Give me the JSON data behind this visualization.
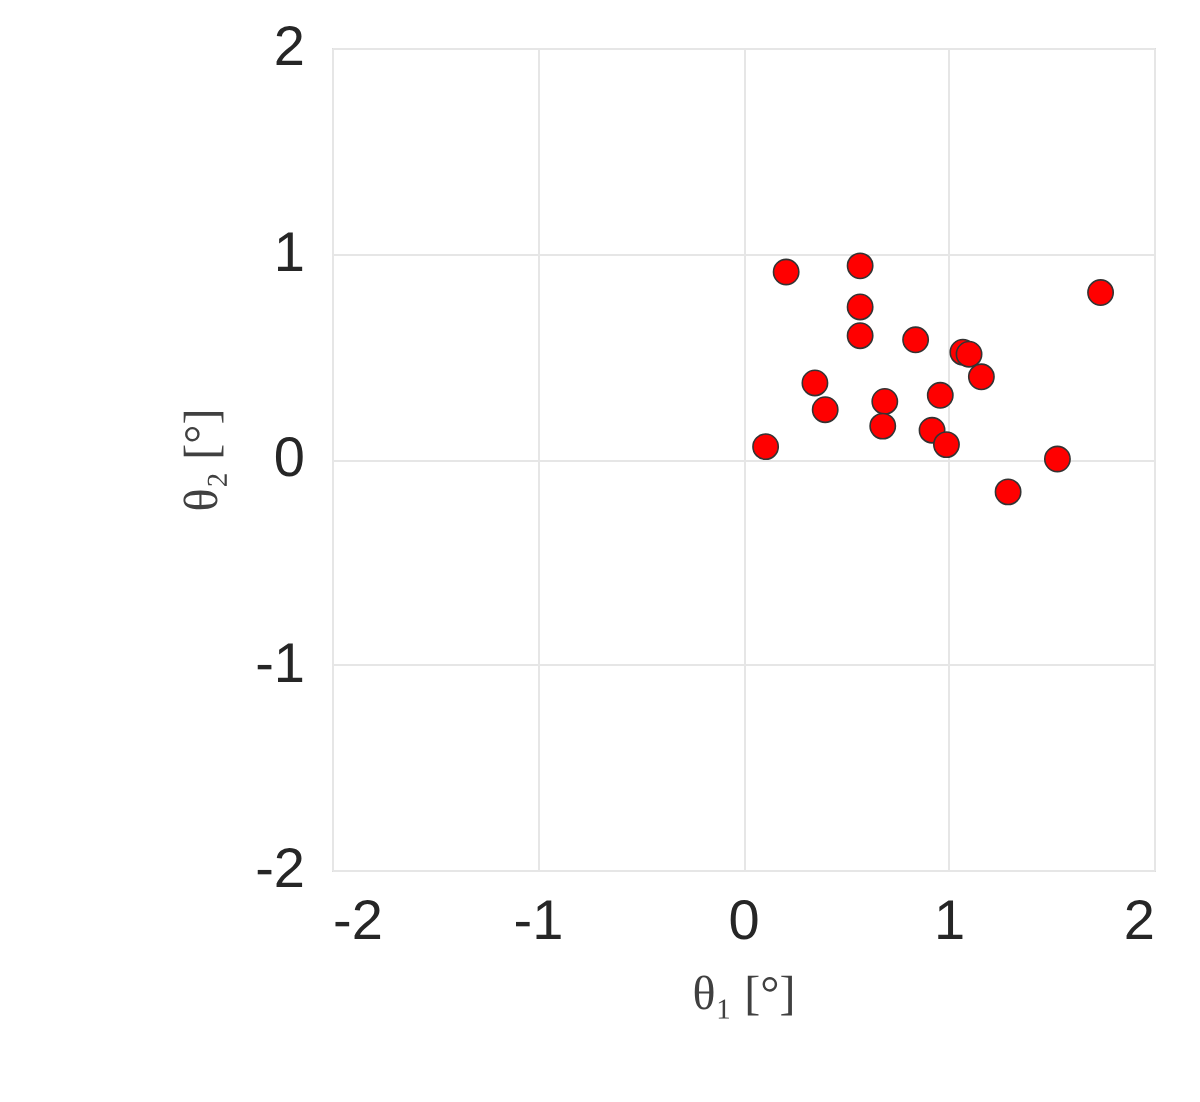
{
  "chart_data": {
    "type": "scatter",
    "xlabel": "θ₁ [°]",
    "ylabel": "θ₂ [°]",
    "x": [
      0.21,
      0.57,
      0.57,
      0.57,
      0.84,
      1.07,
      1.1,
      1.16,
      1.74,
      0.35,
      0.4,
      0.69,
      0.68,
      0.96,
      0.92,
      0.99,
      0.11,
      1.53,
      1.29
    ],
    "values": [
      0.91,
      0.94,
      0.74,
      0.6,
      0.58,
      0.52,
      0.51,
      0.4,
      0.81,
      0.37,
      0.24,
      0.28,
      0.16,
      0.31,
      0.14,
      0.07,
      0.06,
      0.0,
      -0.16
    ],
    "color": "#ff0000",
    "marker": "circle",
    "xlim": [
      -2,
      2
    ],
    "ylim": [
      -2,
      2
    ],
    "xticks": [
      -2,
      -1,
      0,
      1,
      2
    ],
    "yticks": [
      -2,
      -1,
      0,
      1,
      2
    ],
    "grid": true
  }
}
